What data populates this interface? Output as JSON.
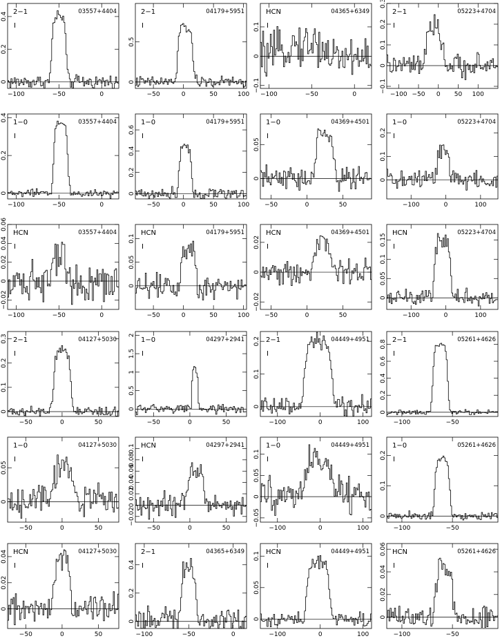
{
  "colors": {
    "line": "#000000",
    "background": "#ffffff"
  },
  "chart_data": [
    {
      "type": "line",
      "line_label": "2−1",
      "intensity_label": "I",
      "source": "03557+4404",
      "xlim": [
        -110,
        20
      ],
      "ylim": [
        -0.04,
        0.48
      ],
      "xticks": [
        -100,
        -50,
        0
      ],
      "yticks": [
        0,
        0.2,
        0.4
      ],
      "center": -50,
      "width": 8,
      "peak": 0.4,
      "noise": 0.03
    },
    {
      "type": "line",
      "line_label": "2−1",
      "intensity_label": "I",
      "source": "04179+5951",
      "xlim": [
        -80,
        105
      ],
      "ylim": [
        -0.08,
        0.98
      ],
      "xticks": [
        -50,
        0,
        50,
        100
      ],
      "yticks": [
        0,
        0.5
      ],
      "center": 3,
      "width": 12,
      "peak": 0.68,
      "noise": 0.05
    },
    {
      "type": "line",
      "line_label": "HCN",
      "intensity_label": "I",
      "source": "04365+6349",
      "xlim": [
        -110,
        20
      ],
      "ylim": [
        -0.11,
        0.18
      ],
      "xticks": [
        -100,
        -50,
        0
      ],
      "yticks": [
        -0.1,
        0,
        0.1
      ],
      "center": -60,
      "width": 25,
      "peak": 0.04,
      "noise": 0.05
    },
    {
      "type": "line",
      "line_label": "2−1",
      "intensity_label": "I",
      "source": "05223+4704",
      "xlim": [
        -130,
        150
      ],
      "ylim": [
        -0.11,
        0.3
      ],
      "xticks": [
        -100,
        -50,
        0,
        50,
        100
      ],
      "yticks": [
        -0.1,
        0,
        0.1,
        0.2,
        0.3
      ],
      "center": -10,
      "width": 20,
      "peak": 0.17,
      "noise": 0.04
    },
    {
      "type": "line",
      "line_label": "1−0",
      "intensity_label": "I",
      "source": "03557+4404",
      "xlim": [
        -110,
        20
      ],
      "ylim": [
        -0.03,
        0.42
      ],
      "xticks": [
        -100,
        -50,
        0
      ],
      "yticks": [
        0,
        0.2,
        0.4
      ],
      "center": -48,
      "width": 8,
      "peak": 0.37,
      "noise": 0.015
    },
    {
      "type": "line",
      "line_label": "1−0",
      "intensity_label": "I",
      "source": "04179+5951",
      "xlim": [
        -80,
        105
      ],
      "ylim": [
        -0.05,
        0.75
      ],
      "xticks": [
        -50,
        0,
        50,
        100
      ],
      "yticks": [
        0,
        0.2,
        0.4,
        0.6
      ],
      "center": 3,
      "width": 10,
      "peak": 0.45,
      "noise": 0.04
    },
    {
      "type": "line",
      "line_label": "1−0",
      "intensity_label": "I",
      "source": "04369+4501",
      "xlim": [
        -65,
        90
      ],
      "ylim": [
        -0.03,
        0.095
      ],
      "xticks": [
        -50,
        0,
        50
      ],
      "yticks": [
        0,
        0.05
      ],
      "center": 25,
      "width": 12,
      "peak": 0.065,
      "noise": 0.012
    },
    {
      "type": "line",
      "line_label": "1−0",
      "intensity_label": "I",
      "source": "05223+4704",
      "xlim": [
        -170,
        150
      ],
      "ylim": [
        -0.08,
        0.28
      ],
      "xticks": [
        -100,
        0,
        100
      ],
      "yticks": [
        0,
        0.1,
        0.2
      ],
      "center": -8,
      "width": 18,
      "peak": 0.12,
      "noise": 0.035
    },
    {
      "type": "line",
      "line_label": "HCN",
      "intensity_label": "I",
      "source": "03557+4404",
      "xlim": [
        -110,
        20
      ],
      "ylim": [
        -0.03,
        0.06
      ],
      "xticks": [
        -100,
        -50,
        0
      ],
      "yticks": [
        -0.02,
        0,
        0.02,
        0.04,
        0.06
      ],
      "center": -50,
      "width": 9,
      "peak": 0.03,
      "noise": 0.015
    },
    {
      "type": "line",
      "line_label": "HCN",
      "intensity_label": "I",
      "source": "04179+5951",
      "xlim": [
        -80,
        105
      ],
      "ylim": [
        -0.05,
        0.13
      ],
      "xticks": [
        -50,
        0,
        50,
        100
      ],
      "yticks": [
        0,
        0.05,
        0.1
      ],
      "center": 8,
      "width": 12,
      "peak": 0.08,
      "noise": 0.02
    },
    {
      "type": "line",
      "line_label": "HCN",
      "intensity_label": "I",
      "source": "04369+4501",
      "xlim": [
        -65,
        90
      ],
      "ylim": [
        -0.025,
        0.032
      ],
      "xticks": [
        -50,
        0,
        50
      ],
      "yticks": [
        -0.02,
        0,
        0.02
      ],
      "center": 22,
      "width": 12,
      "peak": 0.02,
      "noise": 0.006
    },
    {
      "type": "line",
      "line_label": "HCN",
      "intensity_label": "I",
      "source": "05223+4704",
      "xlim": [
        -170,
        150
      ],
      "ylim": [
        -0.03,
        0.19
      ],
      "xticks": [
        -100,
        0,
        100
      ],
      "yticks": [
        0,
        0.05,
        0.1,
        0.15
      ],
      "center": -10,
      "width": 22,
      "peak": 0.15,
      "noise": 0.015
    },
    {
      "type": "line",
      "line_label": "2−1",
      "intensity_label": "I",
      "source": "04127+5030",
      "xlim": [
        -75,
        78
      ],
      "ylim": [
        -0.02,
        0.33
      ],
      "xticks": [
        -50,
        0,
        50
      ],
      "yticks": [
        0,
        0.1,
        0.2,
        0.3
      ],
      "center": 0,
      "width": 11,
      "peak": 0.25,
      "noise": 0.015
    },
    {
      "type": "line",
      "line_label": "1−0",
      "intensity_label": "I",
      "source": "04297+2941",
      "xlim": [
        -75,
        78
      ],
      "ylim": [
        -0.2,
        2.1
      ],
      "xticks": [
        -50,
        0,
        50
      ],
      "yticks": [
        0,
        0.5,
        1,
        1.5,
        2
      ],
      "center": 7,
      "width": 4,
      "peak": 1.0,
      "noise": 0.1
    },
    {
      "type": "line",
      "line_label": "2−1",
      "intensity_label": "I",
      "source": "04449+4951",
      "xlim": [
        -140,
        120
      ],
      "ylim": [
        -0.03,
        0.23
      ],
      "xticks": [
        -100,
        0,
        100
      ],
      "yticks": [
        0,
        0.1,
        0.2
      ],
      "center": -5,
      "width": 30,
      "peak": 0.2,
      "noise": 0.02
    },
    {
      "type": "line",
      "line_label": "2−1",
      "intensity_label": "I",
      "source": "05261+4626",
      "xlim": [
        -115,
        -5
      ],
      "ylim": [
        -0.05,
        0.95
      ],
      "xticks": [
        -100,
        -50
      ],
      "yticks": [
        0,
        0.2,
        0.4,
        0.6,
        0.8
      ],
      "center": -62,
      "width": 7,
      "peak": 0.8,
      "noise": 0.02
    },
    {
      "type": "line",
      "line_label": "1−0",
      "intensity_label": "I",
      "source": "04127+5030",
      "xlim": [
        -75,
        78
      ],
      "ylim": [
        -0.03,
        0.095
      ],
      "xticks": [
        -50,
        0,
        50
      ],
      "yticks": [
        0,
        0.05
      ],
      "center": 2,
      "width": 13,
      "peak": 0.05,
      "noise": 0.015
    },
    {
      "type": "line",
      "line_label": "HCN",
      "intensity_label": "I",
      "source": "04297+2941",
      "xlim": [
        -75,
        78
      ],
      "ylim": [
        -0.03,
        0.12
      ],
      "xticks": [
        -50,
        0,
        50
      ],
      "yticks": [
        -0.02,
        0,
        0.02,
        0.04,
        0.06,
        0.08,
        0.1
      ],
      "center": 8,
      "width": 11,
      "peak": 0.06,
      "noise": 0.015
    },
    {
      "type": "line",
      "line_label": "1−0",
      "intensity_label": "I",
      "source": "04449+4951",
      "xlim": [
        -140,
        120
      ],
      "ylim": [
        -0.06,
        0.14
      ],
      "xticks": [
        -100,
        0,
        100
      ],
      "yticks": [
        -0.05,
        0,
        0.05,
        0.1
      ],
      "center": -5,
      "width": 30,
      "peak": 0.08,
      "noise": 0.03
    },
    {
      "type": "line",
      "line_label": "1−0",
      "intensity_label": "I",
      "source": "05261+4626",
      "xlim": [
        -115,
        -5
      ],
      "ylim": [
        -0.02,
        0.26
      ],
      "xticks": [
        -100,
        -50
      ],
      "yticks": [
        0,
        0.1,
        0.2
      ],
      "center": -60,
      "width": 7,
      "peak": 0.19,
      "noise": 0.01
    },
    {
      "type": "line",
      "line_label": "HCN",
      "intensity_label": "I",
      "source": "04127+5030",
      "xlim": [
        -75,
        78
      ],
      "ylim": [
        -0.015,
        0.05
      ],
      "xticks": [
        -50,
        0,
        50
      ],
      "yticks": [
        0,
        0.02,
        0.04
      ],
      "center": 0,
      "width": 10,
      "peak": 0.04,
      "noise": 0.008
    },
    {
      "type": "line",
      "line_label": "2−1",
      "intensity_label": "I",
      "source": "04365+6349",
      "xlim": [
        -110,
        15
      ],
      "ylim": [
        -0.05,
        0.55
      ],
      "xticks": [
        -100,
        -50,
        0
      ],
      "yticks": [
        0,
        0.2,
        0.4
      ],
      "center": -50,
      "width": 8,
      "peak": 0.35,
      "noise": 0.07
    },
    {
      "type": "line",
      "line_label": "HCN",
      "intensity_label": "I",
      "source": "04449+4951",
      "xlim": [
        -140,
        120
      ],
      "ylim": [
        -0.015,
        0.12
      ],
      "xticks": [
        -100,
        0,
        100
      ],
      "yticks": [
        0,
        0.05,
        0.1
      ],
      "center": -5,
      "width": 25,
      "peak": 0.09,
      "noise": 0.008
    },
    {
      "type": "line",
      "line_label": "HCN",
      "intensity_label": "I",
      "source": "05261+4626",
      "xlim": [
        -115,
        -5
      ],
      "ylim": [
        -0.01,
        0.065
      ],
      "xticks": [
        -100,
        -50
      ],
      "yticks": [
        0,
        0.02,
        0.04,
        0.06
      ],
      "center": -58,
      "width": 8,
      "peak": 0.045,
      "noise": 0.008
    }
  ]
}
